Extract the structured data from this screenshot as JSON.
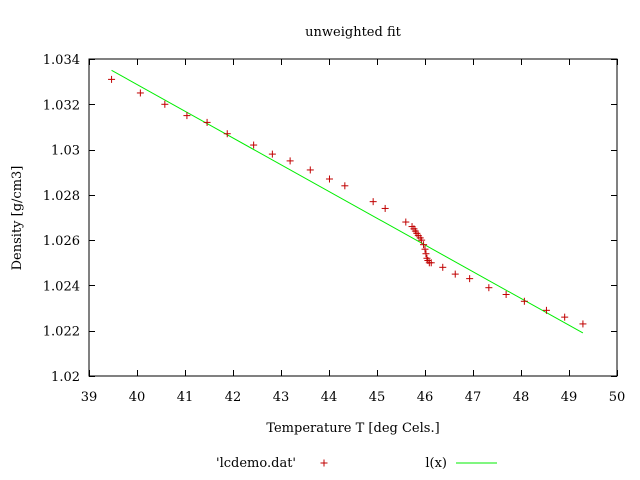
{
  "chart_data": {
    "type": "scatter",
    "title": "unweighted fit",
    "xlabel": "Temperature T  [deg Cels.]",
    "ylabel": "Density [g/cm3]",
    "xlim": [
      39,
      50
    ],
    "ylim": [
      1.02,
      1.034
    ],
    "xticks": [
      39,
      40,
      41,
      42,
      43,
      44,
      45,
      46,
      47,
      48,
      49,
      50
    ],
    "yticks": [
      1.02,
      1.022,
      1.024,
      1.026,
      1.028,
      1.03,
      1.032,
      1.034
    ],
    "ytick_labels": [
      "1.02",
      "1.022",
      "1.024",
      "1.026",
      "1.028",
      "1.03",
      "1.032",
      "1.034"
    ],
    "grid": false,
    "legend_position": "bottom",
    "series": [
      {
        "name": "'lcdemo.dat'",
        "kind": "points",
        "marker": "plus",
        "color": "#c00000",
        "x": [
          39.47,
          40.07,
          40.58,
          41.04,
          41.46,
          41.88,
          42.43,
          42.82,
          43.19,
          43.61,
          44.01,
          44.33,
          44.92,
          45.17,
          45.6,
          45.73,
          45.77,
          45.8,
          45.83,
          45.86,
          45.9,
          45.93,
          45.97,
          46.0,
          46.02,
          46.04,
          46.06,
          46.09,
          46.13,
          46.37,
          46.63,
          46.93,
          47.33,
          47.69,
          48.07,
          48.53,
          48.91,
          49.29
        ],
        "y": [
          1.0331,
          1.0325,
          1.032,
          1.0315,
          1.0312,
          1.0307,
          1.0302,
          1.0298,
          1.0295,
          1.0291,
          1.0287,
          1.0284,
          1.0277,
          1.0274,
          1.0268,
          1.0266,
          1.0265,
          1.0264,
          1.0263,
          1.0262,
          1.0261,
          1.026,
          1.0258,
          1.0256,
          1.0254,
          1.0252,
          1.0251,
          1.025,
          1.025,
          1.0248,
          1.0245,
          1.0243,
          1.0239,
          1.0236,
          1.0233,
          1.0229,
          1.0226,
          1.0223
        ]
      },
      {
        "name": "l(x)",
        "kind": "line",
        "color": "#00ee00",
        "x": [
          39.47,
          49.29
        ],
        "y": [
          1.0335,
          1.0219
        ]
      }
    ]
  }
}
